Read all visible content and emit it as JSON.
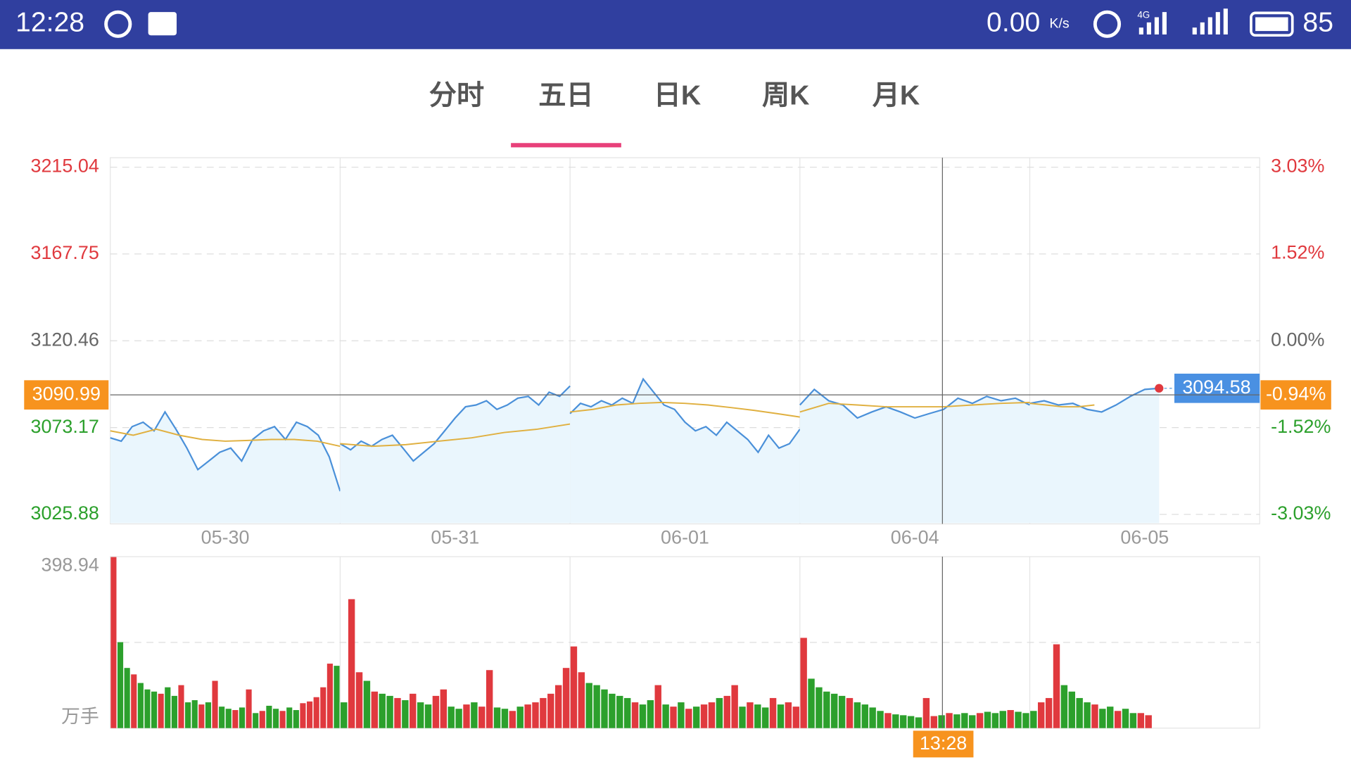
{
  "status_bar": {
    "time": "12:28",
    "speed": "0.00",
    "speed_unit": "K/s",
    "network": "4G",
    "battery": "85"
  },
  "tabs": [
    "分时",
    "五日",
    "日K",
    "周K",
    "月K"
  ],
  "active_tab": 1,
  "chart_data": {
    "type": "line",
    "ylim": [
      3025.88,
      3215.04
    ],
    "yticks": [
      3025.88,
      3073.17,
      3120.46,
      3167.75,
      3215.04
    ],
    "y2lim": [
      -3.03,
      3.03
    ],
    "y2ticks": [
      {
        "value": -3.03,
        "label": "-3.03%"
      },
      {
        "value": -1.52,
        "label": "-1.52%"
      },
      {
        "value": 0,
        "label": "0.00%"
      },
      {
        "value": 1.52,
        "label": "1.52%"
      },
      {
        "value": 3.03,
        "label": "3.03%"
      }
    ],
    "price_color": "#4a90d9",
    "average_color": "#e0b040",
    "area_color": "#eaf6fd",
    "up_color": "#e0393e",
    "down_color": "#2ca02c",
    "flat_color": "#666666",
    "last_price": 3094.58,
    "crosshair": {
      "x": 3.62,
      "price": 3090.99,
      "change": {
        "value": -0.94,
        "label": "-0.94%"
      },
      "time": "13:28"
    },
    "volume_ylim": [
      0,
      398.94
    ],
    "volume_yticks": [
      398.94
    ],
    "volume_unit": "万手",
    "days": [
      {
        "label": "05-30",
        "price": [
          3067.6,
          3065.8,
          3073.7,
          3076.1,
          3071.4,
          3081.7,
          3072.3,
          3062.0,
          3050.3,
          3055.0,
          3059.7,
          3062.0,
          3055.0,
          3066.7,
          3071.4,
          3073.7,
          3066.7,
          3076.1,
          3073.7,
          3069.0,
          3057.3,
          3038.5
        ],
        "average": [
          3071.4,
          3069.0,
          3072.3,
          3069.0,
          3066.7,
          3065.8,
          3066.2,
          3066.7,
          3066.7,
          3065.8,
          3063.0
        ],
        "volume": [
          398,
          200,
          140,
          125,
          105,
          90,
          85,
          80,
          95,
          75,
          100,
          60,
          65,
          55,
          60,
          110,
          50,
          45,
          42,
          48,
          90,
          35,
          40,
          52,
          45,
          40,
          48,
          42,
          58,
          62,
          72,
          95,
          150,
          145
        ],
        "up": [
          1,
          0,
          0,
          1,
          0,
          0,
          0,
          1,
          0,
          0,
          1,
          0,
          0,
          1,
          0,
          1,
          0,
          0,
          1,
          0,
          1,
          0,
          1,
          0,
          0,
          1,
          0,
          0,
          1,
          1,
          1,
          1,
          1,
          0
        ]
      },
      {
        "label": "05-31",
        "price": [
          3064.4,
          3061.1,
          3065.8,
          3063.0,
          3066.7,
          3069.0,
          3062.0,
          3055.0,
          3059.7,
          3064.4,
          3071.4,
          3078.4,
          3084.5,
          3085.5,
          3087.8,
          3083.1,
          3085.5,
          3089.2,
          3090.2,
          3085.5,
          3092.5,
          3090.2,
          3095.8
        ],
        "average": [
          3064.4,
          3063.0,
          3063.9,
          3065.8,
          3067.6,
          3070.5,
          3072.3,
          3075.1
        ],
        "volume": [
          60,
          300,
          130,
          110,
          85,
          80,
          75,
          70,
          65,
          80,
          60,
          55,
          75,
          90,
          50,
          45,
          55,
          60,
          50,
          135,
          48,
          45,
          40,
          50,
          55,
          60,
          70,
          80,
          100,
          140
        ],
        "up": [
          0,
          1,
          1,
          0,
          1,
          0,
          0,
          1,
          0,
          1,
          0,
          0,
          1,
          1,
          0,
          0,
          1,
          0,
          1,
          1,
          0,
          0,
          1,
          0,
          1,
          1,
          1,
          1,
          1,
          1
        ]
      },
      {
        "label": "06-01",
        "price": [
          3080.8,
          3086.4,
          3084.5,
          3087.8,
          3085.5,
          3089.2,
          3086.4,
          3099.6,
          3092.5,
          3085.5,
          3083.1,
          3076.1,
          3071.4,
          3073.7,
          3069.0,
          3076.1,
          3071.4,
          3066.7,
          3059.7,
          3069.0,
          3062.0,
          3064.4,
          3072.3
        ],
        "average": [
          3081.7,
          3083.1,
          3085.5,
          3086.4,
          3086.9,
          3086.4,
          3085.5,
          3084.1,
          3082.6,
          3080.8,
          3078.9
        ],
        "volume": [
          190,
          130,
          105,
          100,
          90,
          80,
          75,
          70,
          60,
          55,
          65,
          100,
          55,
          50,
          60,
          45,
          50,
          55,
          60,
          70,
          75,
          100,
          50,
          60,
          55,
          48,
          70,
          55,
          60,
          50
        ],
        "up": [
          1,
          1,
          0,
          0,
          0,
          0,
          0,
          0,
          1,
          0,
          0,
          1,
          0,
          1,
          0,
          1,
          0,
          1,
          1,
          0,
          1,
          1,
          0,
          1,
          0,
          0,
          1,
          0,
          1,
          1
        ]
      },
      {
        "label": "06-04",
        "price": [
          3085.5,
          3094.0,
          3087.8,
          3085.5,
          3078.4,
          3081.7,
          3084.5,
          3081.7,
          3078.4,
          3080.8,
          3083.1,
          3089.2,
          3086.4,
          3090.2,
          3087.8,
          3089.2,
          3085.5
        ],
        "average": [
          3081.7,
          3086.4,
          3085.5,
          3084.5,
          3084.5,
          3084.5,
          3085.5,
          3086.4,
          3086.9
        ],
        "volume": [
          210,
          115,
          95,
          85,
          80,
          75,
          70,
          60,
          55,
          48,
          40,
          35,
          32,
          30,
          28,
          25,
          70,
          28,
          30,
          35,
          32,
          35,
          30,
          35,
          38,
          35,
          40,
          42,
          38,
          35
        ],
        "up": [
          1,
          0,
          0,
          0,
          0,
          0,
          1,
          0,
          0,
          0,
          0,
          1,
          0,
          0,
          0,
          0,
          1,
          1,
          0,
          1,
          0,
          0,
          0,
          1,
          0,
          0,
          0,
          1,
          0,
          0
        ]
      },
      {
        "label": "06-05",
        "price": [
          3086.4,
          3087.8,
          3085.5,
          3086.4,
          3083.1,
          3081.7,
          3085.5,
          3090.2,
          3094.0,
          3094.58
        ],
        "average": [
          3086.4,
          3085.5,
          3084.5,
          3084.5,
          3085.5
        ],
        "volume": [
          40,
          60,
          70,
          195,
          100,
          85,
          70,
          60,
          55,
          45,
          50,
          40,
          45,
          35,
          35,
          30
        ],
        "up": [
          0,
          1,
          1,
          1,
          0,
          0,
          0,
          0,
          1,
          0,
          0,
          1,
          0,
          0,
          1,
          1
        ]
      }
    ]
  }
}
